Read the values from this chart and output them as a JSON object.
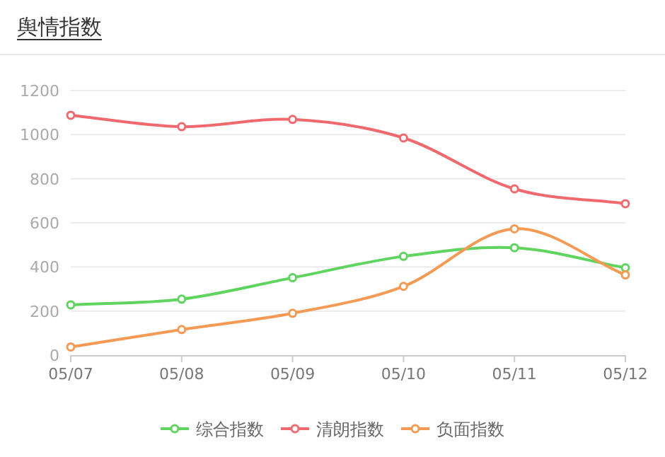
{
  "chart_data": {
    "type": "line",
    "title": "舆情指数",
    "categories": [
      "05/07",
      "05/08",
      "05/09",
      "05/10",
      "05/11",
      "05/12"
    ],
    "series": [
      {
        "name": "综合指数",
        "color": "#5fd45f",
        "values": [
          228,
          254,
          351,
          448,
          487,
          396
        ]
      },
      {
        "name": "清朗指数",
        "color": "#f0696f",
        "values": [
          1088,
          1036,
          1069,
          985,
          754,
          687
        ]
      },
      {
        "name": "负面指数",
        "color": "#f59a54",
        "values": [
          37,
          116,
          190,
          312,
          573,
          364
        ]
      }
    ],
    "ylim": [
      0,
      1200
    ],
    "yticks": [
      0,
      200,
      400,
      600,
      800,
      1000,
      1200
    ],
    "grid": "y",
    "legend": "bottom",
    "marker": "circle",
    "line_style": "solid"
  }
}
